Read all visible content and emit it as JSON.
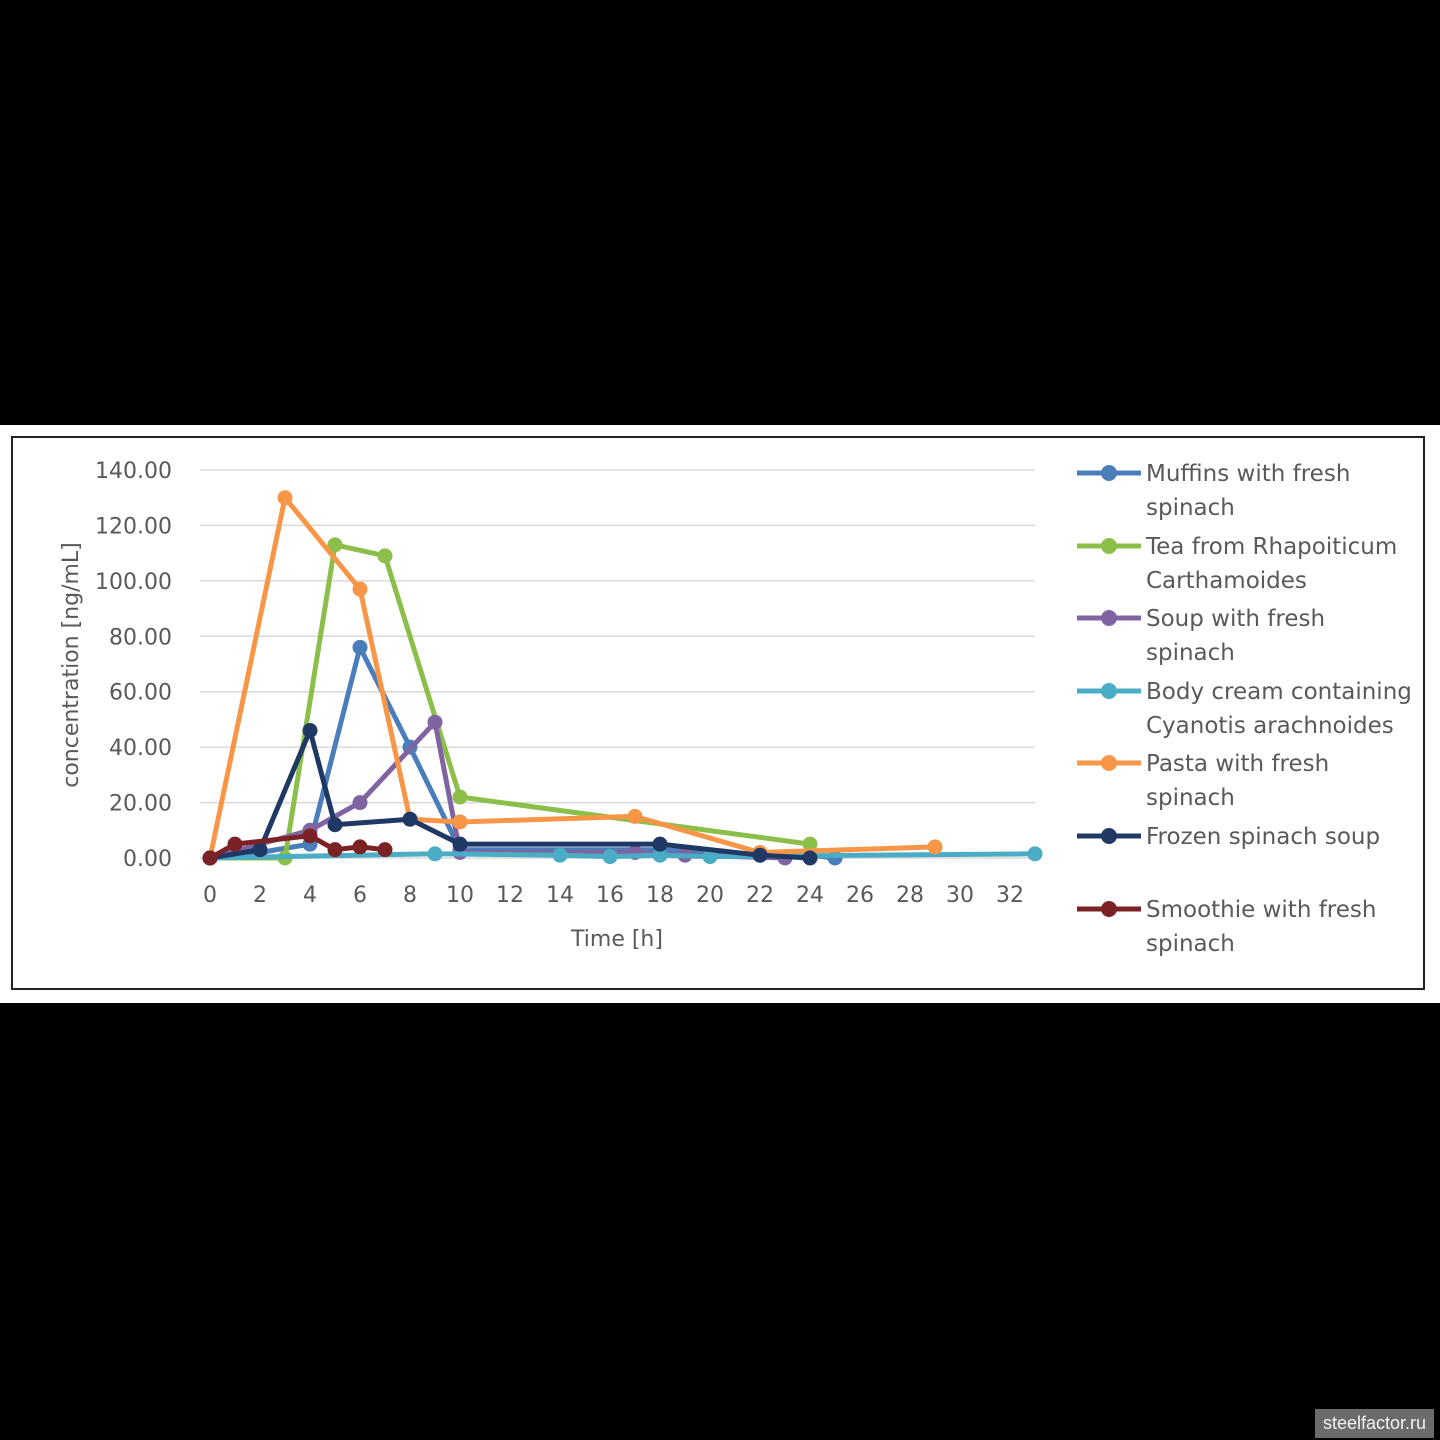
{
  "chart_data": {
    "type": "line",
    "title": "",
    "xlabel": "Time [h]",
    "ylabel": "concentration [ng/mL]",
    "xlim": [
      0,
      33
    ],
    "ylim": [
      0,
      140
    ],
    "x_ticks": [
      "0",
      "2",
      "4",
      "6",
      "8",
      "10",
      "12",
      "14",
      "16",
      "18",
      "20",
      "22",
      "24",
      "26",
      "28",
      "30",
      "32"
    ],
    "y_ticks": [
      "0.00",
      "20.00",
      "40.00",
      "60.00",
      "80.00",
      "100.00",
      "120.00",
      "140.00"
    ],
    "grid": true,
    "legend_position": "right",
    "series": [
      {
        "name": "Muffins with fresh spinach",
        "color": "#4a7ebb",
        "points": [
          [
            0,
            0
          ],
          [
            2,
            2
          ],
          [
            4,
            5
          ],
          [
            6,
            76
          ],
          [
            8,
            40
          ],
          [
            10,
            3
          ],
          [
            18,
            3
          ],
          [
            22,
            1
          ],
          [
            24,
            1
          ],
          [
            25,
            0
          ]
        ]
      },
      {
        "name": "Tea from Rhapoiticum Carthamoides",
        "color": "#8cbf4a",
        "points": [
          [
            0,
            0
          ],
          [
            3,
            0
          ],
          [
            5,
            113
          ],
          [
            7,
            109
          ],
          [
            10,
            22
          ],
          [
            24,
            5
          ]
        ]
      },
      {
        "name": "Soup with fresh spinach",
        "color": "#8064a2",
        "points": [
          [
            0,
            0
          ],
          [
            4,
            10
          ],
          [
            6,
            20
          ],
          [
            9,
            49
          ],
          [
            10,
            2
          ],
          [
            17,
            2
          ],
          [
            19,
            1
          ],
          [
            23,
            0
          ]
        ]
      },
      {
        "name": "Body cream containing Cyanotis arachnoides",
        "color": "#4bacc6",
        "points": [
          [
            0,
            0
          ],
          [
            9,
            1.5
          ],
          [
            14,
            1
          ],
          [
            16,
            0.5
          ],
          [
            18,
            1
          ],
          [
            20,
            0.5
          ],
          [
            33,
            1.5
          ]
        ]
      },
      {
        "name": "Pasta with fresh spinach",
        "color": "#f79646",
        "points": [
          [
            0,
            0
          ],
          [
            3,
            130
          ],
          [
            6,
            97
          ],
          [
            8,
            14
          ],
          [
            10,
            13
          ],
          [
            17,
            15
          ],
          [
            22,
            2
          ],
          [
            29,
            4
          ]
        ]
      },
      {
        "name": "Frozen spinach soup",
        "color": "#1f3864",
        "points": [
          [
            0,
            0
          ],
          [
            2,
            3
          ],
          [
            4,
            46
          ],
          [
            5,
            12
          ],
          [
            8,
            14
          ],
          [
            10,
            5
          ],
          [
            18,
            5
          ],
          [
            22,
            1
          ],
          [
            24,
            0
          ]
        ]
      },
      {
        "name": "Smoothie with fresh spinach",
        "color": "#7b2226",
        "points": [
          [
            0,
            0
          ],
          [
            1,
            5
          ],
          [
            4,
            8
          ],
          [
            5,
            3
          ],
          [
            6,
            4
          ],
          [
            7,
            3
          ]
        ]
      }
    ]
  },
  "legend": [
    {
      "line1": "Muffins with fresh",
      "line2": "spinach"
    },
    {
      "line1": "Tea from Rhapoiticum",
      "line2": "Carthamoides"
    },
    {
      "line1": "Soup with fresh",
      "line2": "spinach"
    },
    {
      "line1": "Body cream containing",
      "line2": "Cyanotis arachnoides"
    },
    {
      "line1": "Pasta with fresh",
      "line2": "spinach"
    },
    {
      "line1": "Frozen spinach soup",
      "line2": ""
    },
    {
      "line1": "Smoothie with fresh",
      "line2": "spinach"
    }
  ],
  "watermark": "steelfactor.ru"
}
